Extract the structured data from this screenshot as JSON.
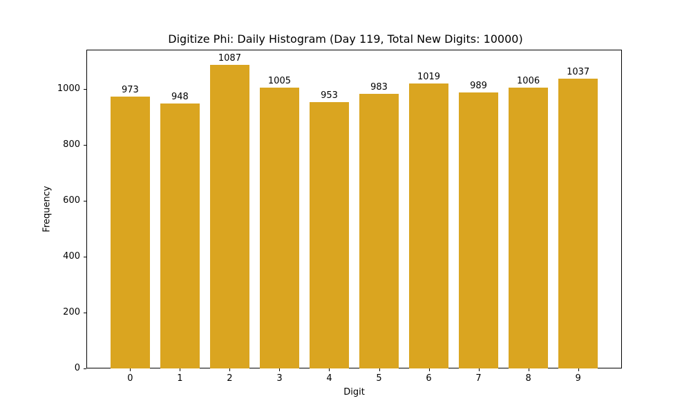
{
  "chart_data": {
    "type": "bar",
    "title": "Digitize Phi: Daily Histogram (Day 119, Total New Digits: 10000)",
    "xlabel": "Digit",
    "ylabel": "Frequency",
    "categories": [
      "0",
      "1",
      "2",
      "3",
      "4",
      "5",
      "6",
      "7",
      "8",
      "9"
    ],
    "values": [
      973,
      948,
      1087,
      1005,
      953,
      983,
      1019,
      989,
      1006,
      1037
    ],
    "data_labels": [
      "973",
      "948",
      "1087",
      "1005",
      "953",
      "983",
      "1019",
      "989",
      "1006",
      "1037"
    ],
    "yticks": [
      0,
      200,
      400,
      600,
      800,
      1000
    ],
    "ylim": [
      0,
      1141
    ],
    "grid": false,
    "legend": null,
    "bar_color": "#DAA520"
  }
}
